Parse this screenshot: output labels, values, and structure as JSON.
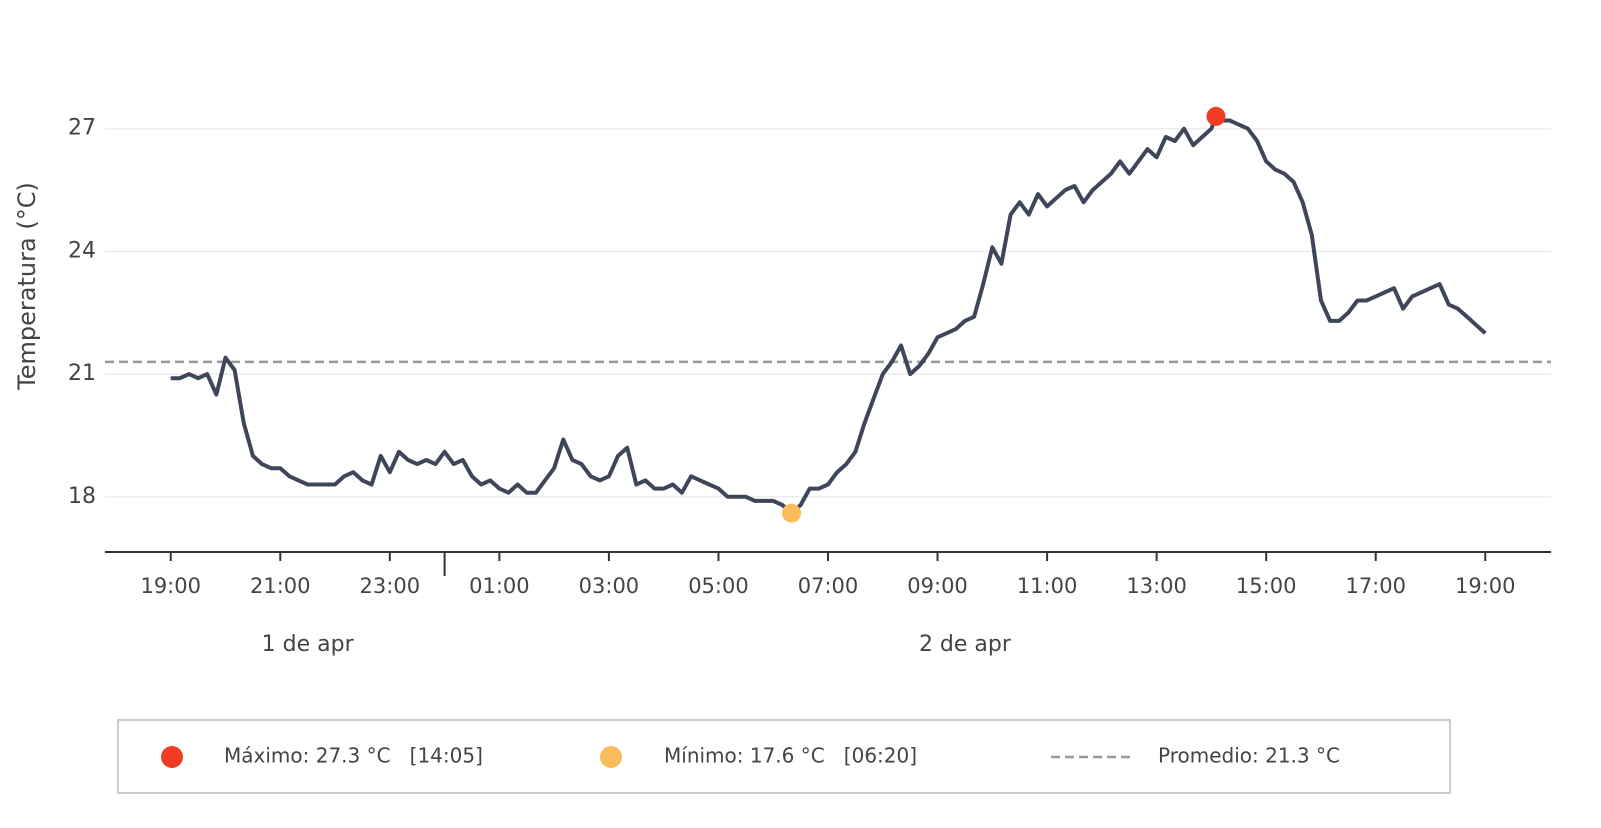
{
  "chart_data": {
    "type": "line",
    "y_label": "Temperatura (°C)",
    "x": [
      "04-01 19:00",
      "04-01 19:10",
      "04-01 19:20",
      "04-01 19:30",
      "04-01 19:40",
      "04-01 19:50",
      "04-01 20:00",
      "04-01 20:10",
      "04-01 20:20",
      "04-01 20:30",
      "04-01 20:40",
      "04-01 20:50",
      "04-01 21:00",
      "04-01 21:10",
      "04-01 21:20",
      "04-01 21:30",
      "04-01 21:40",
      "04-01 21:50",
      "04-01 22:00",
      "04-01 22:10",
      "04-01 22:20",
      "04-01 22:30",
      "04-01 22:40",
      "04-01 22:50",
      "04-01 23:00",
      "04-01 23:10",
      "04-01 23:20",
      "04-01 23:30",
      "04-01 23:40",
      "04-01 23:50",
      "04-02 00:00",
      "04-02 00:10",
      "04-02 00:20",
      "04-02 00:30",
      "04-02 00:40",
      "04-02 00:50",
      "04-02 01:00",
      "04-02 01:10",
      "04-02 01:20",
      "04-02 01:30",
      "04-02 01:40",
      "04-02 01:50",
      "04-02 02:00",
      "04-02 02:10",
      "04-02 02:20",
      "04-02 02:30",
      "04-02 02:40",
      "04-02 02:50",
      "04-02 03:00",
      "04-02 03:10",
      "04-02 03:20",
      "04-02 03:30",
      "04-02 03:40",
      "04-02 03:50",
      "04-02 04:00",
      "04-02 04:10",
      "04-02 04:20",
      "04-02 04:30",
      "04-02 04:40",
      "04-02 04:50",
      "04-02 05:00",
      "04-02 05:10",
      "04-02 05:20",
      "04-02 05:30",
      "04-02 05:40",
      "04-02 05:50",
      "04-02 06:00",
      "04-02 06:10",
      "04-02 06:20",
      "04-02 06:30",
      "04-02 06:40",
      "04-02 06:50",
      "04-02 07:00",
      "04-02 07:10",
      "04-02 07:20",
      "04-02 07:30",
      "04-02 07:40",
      "04-02 07:50",
      "04-02 08:00",
      "04-02 08:10",
      "04-02 08:20",
      "04-02 08:30",
      "04-02 08:40",
      "04-02 08:50",
      "04-02 09:00",
      "04-02 09:10",
      "04-02 09:20",
      "04-02 09:30",
      "04-02 09:40",
      "04-02 09:50",
      "04-02 10:00",
      "04-02 10:10",
      "04-02 10:20",
      "04-02 10:30",
      "04-02 10:40",
      "04-02 10:50",
      "04-02 11:00",
      "04-02 11:10",
      "04-02 11:20",
      "04-02 11:30",
      "04-02 11:40",
      "04-02 11:50",
      "04-02 12:00",
      "04-02 12:10",
      "04-02 12:20",
      "04-02 12:30",
      "04-02 12:40",
      "04-02 12:50",
      "04-02 13:00",
      "04-02 13:10",
      "04-02 13:20",
      "04-02 13:30",
      "04-02 13:40",
      "04-02 13:50",
      "04-02 14:00",
      "04-02 14:05",
      "04-02 14:10",
      "04-02 14:20",
      "04-02 14:30",
      "04-02 14:40",
      "04-02 14:50",
      "04-02 15:00",
      "04-02 15:10",
      "04-02 15:20",
      "04-02 15:30",
      "04-02 15:40",
      "04-02 15:50",
      "04-02 16:00",
      "04-02 16:10",
      "04-02 16:20",
      "04-02 16:30",
      "04-02 16:40",
      "04-02 16:50",
      "04-02 17:00",
      "04-02 17:10",
      "04-02 17:20",
      "04-02 17:30",
      "04-02 17:40",
      "04-02 17:50",
      "04-02 18:00",
      "04-02 18:10",
      "04-02 18:20",
      "04-02 18:30",
      "04-02 18:40",
      "04-02 18:50",
      "04-02 19:00"
    ],
    "series": [
      {
        "name": "Temperatura",
        "color": "#3f4659",
        "values": [
          20.9,
          20.9,
          21.0,
          20.9,
          21.0,
          20.5,
          21.4,
          21.1,
          19.8,
          19.0,
          18.8,
          18.7,
          18.7,
          18.5,
          18.4,
          18.3,
          18.3,
          18.3,
          18.3,
          18.5,
          18.6,
          18.4,
          18.3,
          19.0,
          18.6,
          19.1,
          18.9,
          18.8,
          18.9,
          18.8,
          19.1,
          18.8,
          18.9,
          18.5,
          18.3,
          18.4,
          18.2,
          18.1,
          18.3,
          18.1,
          18.1,
          18.4,
          18.7,
          19.4,
          18.9,
          18.8,
          18.5,
          18.4,
          18.5,
          19.0,
          19.2,
          18.3,
          18.4,
          18.2,
          18.2,
          18.3,
          18.1,
          18.5,
          18.4,
          18.3,
          18.2,
          18.0,
          18.0,
          18.0,
          17.9,
          17.9,
          17.9,
          17.8,
          17.6,
          17.8,
          18.2,
          18.2,
          18.3,
          18.6,
          18.8,
          19.1,
          19.8,
          20.4,
          21.0,
          21.3,
          21.7,
          21.0,
          21.2,
          21.5,
          21.9,
          22.0,
          22.1,
          22.3,
          22.4,
          23.2,
          24.1,
          23.7,
          24.9,
          25.2,
          24.9,
          25.4,
          25.1,
          25.3,
          25.5,
          25.6,
          25.2,
          25.5,
          25.7,
          25.9,
          26.2,
          25.9,
          26.2,
          26.5,
          26.3,
          26.8,
          26.7,
          27.0,
          26.6,
          26.8,
          27.0,
          27.3,
          27.2,
          27.2,
          27.1,
          27.0,
          26.7,
          26.2,
          26.0,
          25.9,
          25.7,
          25.2,
          24.4,
          22.8,
          22.3,
          22.3,
          22.5,
          22.8,
          22.8,
          22.9,
          23.0,
          23.1,
          22.6,
          22.9,
          23.0,
          23.1,
          23.2,
          22.7,
          22.6,
          22.4,
          22.2,
          22.0
        ]
      }
    ],
    "maximum": {
      "x": "04-02 14:05",
      "value": 27.3,
      "color": "#f03c24",
      "label": "Máximo: 27.3 °C   [14:05]"
    },
    "minimum": {
      "x": "04-02 06:20",
      "value": 17.6,
      "color": "#fbbc5c",
      "label": "Mínimo: 17.6 °C   [06:20]"
    },
    "average": {
      "value": 21.3,
      "color": "#999999",
      "label": "Promedio: 21.3 °C"
    },
    "xlim": [
      "04-01 17:48",
      "04-02 20:12"
    ],
    "xticks": [
      {
        "value": "04-01 19:00",
        "label": "19:00"
      },
      {
        "value": "04-01 21:00",
        "label": "21:00"
      },
      {
        "value": "04-01 23:00",
        "label": "23:00"
      },
      {
        "value": "04-02 01:00",
        "label": "01:00"
      },
      {
        "value": "04-02 03:00",
        "label": "03:00"
      },
      {
        "value": "04-02 05:00",
        "label": "05:00"
      },
      {
        "value": "04-02 07:00",
        "label": "07:00"
      },
      {
        "value": "04-02 09:00",
        "label": "09:00"
      },
      {
        "value": "04-02 11:00",
        "label": "11:00"
      },
      {
        "value": "04-02 13:00",
        "label": "13:00"
      },
      {
        "value": "04-02 15:00",
        "label": "15:00"
      },
      {
        "value": "04-02 17:00",
        "label": "17:00"
      },
      {
        "value": "04-02 19:00",
        "label": "19:00"
      }
    ],
    "day_labels": [
      {
        "value": "04-01 21:30",
        "label": "1 de apr"
      },
      {
        "value": "04-02 09:30",
        "label": "2 de apr"
      }
    ],
    "day_separator": "04-02 00:00",
    "ylim": [
      16.65,
      30
    ],
    "yticks": [
      18,
      21,
      24,
      27
    ],
    "grid": true
  }
}
